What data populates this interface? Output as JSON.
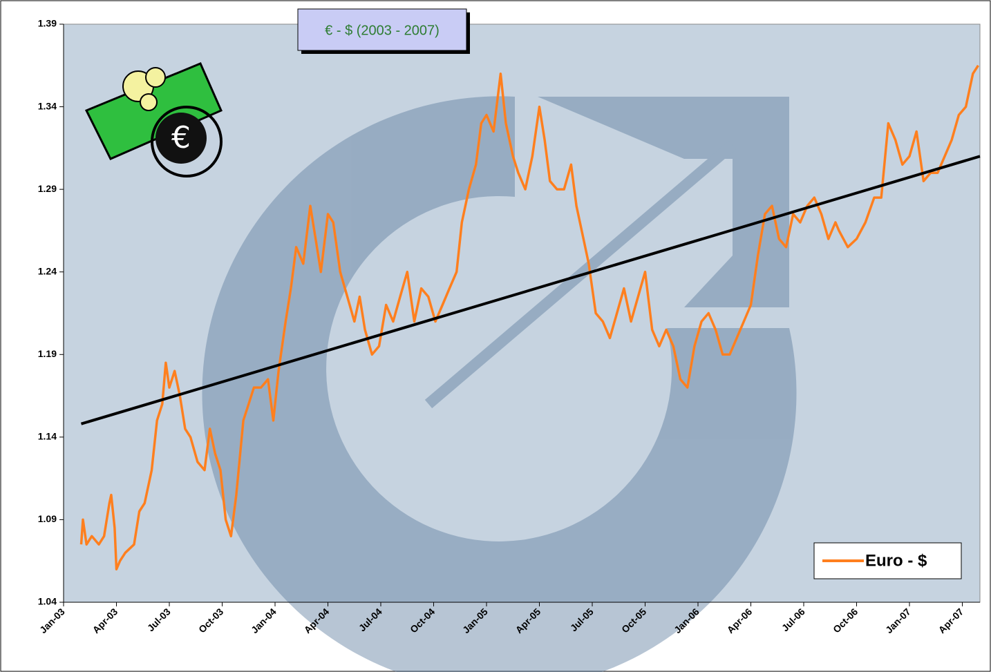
{
  "chart_data": {
    "type": "line",
    "title": "€ - $ (2003 - 2007)",
    "legend": "bottom-right",
    "grid": false,
    "xlim": [
      0,
      52
    ],
    "ylim": [
      1.04,
      1.39
    ],
    "yticks": [
      1.04,
      1.09,
      1.14,
      1.19,
      1.24,
      1.29,
      1.34,
      1.39
    ],
    "xticks": [
      {
        "value": 0,
        "label": "Jan-03"
      },
      {
        "value": 3,
        "label": "Apr-03"
      },
      {
        "value": 6,
        "label": "Jul-03"
      },
      {
        "value": 9,
        "label": "Oct-03"
      },
      {
        "value": 12,
        "label": "Jan-04"
      },
      {
        "value": 15,
        "label": "Apr-04"
      },
      {
        "value": 18,
        "label": "Jul-04"
      },
      {
        "value": 21,
        "label": "Oct-04"
      },
      {
        "value": 24,
        "label": "Jan-05"
      },
      {
        "value": 27,
        "label": "Apr-05"
      },
      {
        "value": 30,
        "label": "Jul-05"
      },
      {
        "value": 33,
        "label": "Oct-05"
      },
      {
        "value": 36,
        "label": "Jan-06"
      },
      {
        "value": 39,
        "label": "Apr-06"
      },
      {
        "value": 42,
        "label": "Jul-06"
      },
      {
        "value": 45,
        "label": "Oct-06"
      },
      {
        "value": 48,
        "label": "Jan-07"
      },
      {
        "value": 51,
        "label": "Apr-07"
      }
    ],
    "series": [
      {
        "name": "Euro - $",
        "color": "#ff7f1e",
        "x": [
          1.0,
          1.1,
          1.3,
          1.6,
          2.0,
          2.3,
          2.6,
          2.7,
          2.9,
          3.0,
          3.2,
          3.5,
          4.0,
          4.3,
          4.6,
          5.0,
          5.3,
          5.6,
          5.8,
          6.0,
          6.3,
          6.6,
          6.9,
          7.2,
          7.6,
          8.0,
          8.3,
          8.6,
          8.9,
          9.2,
          9.5,
          9.8,
          10.2,
          10.5,
          10.8,
          11.2,
          11.6,
          11.9,
          12.2,
          12.6,
          12.9,
          13.2,
          13.6,
          14.0,
          14.3,
          14.6,
          15.0,
          15.3,
          15.7,
          16.1,
          16.5,
          16.8,
          17.1,
          17.5,
          17.9,
          18.3,
          18.7,
          19.1,
          19.5,
          19.9,
          20.3,
          20.7,
          21.1,
          21.5,
          21.9,
          22.3,
          22.6,
          23.0,
          23.4,
          23.7,
          24.0,
          24.4,
          24.8,
          25.1,
          25.5,
          25.8,
          26.2,
          26.6,
          27.0,
          27.3,
          27.6,
          28.0,
          28.4,
          28.8,
          29.1,
          29.5,
          29.8,
          30.2,
          30.6,
          31.0,
          31.4,
          31.8,
          32.2,
          32.6,
          33.0,
          33.4,
          33.8,
          34.2,
          34.6,
          35.0,
          35.4,
          35.8,
          36.2,
          36.6,
          37.0,
          37.4,
          37.8,
          38.2,
          38.6,
          39.0,
          39.4,
          39.8,
          40.2,
          40.6,
          41.0,
          41.4,
          41.8,
          42.2,
          42.6,
          43.0,
          43.4,
          43.8,
          44.0,
          44.5,
          45.0,
          45.5,
          46.0,
          46.4,
          46.8,
          47.2,
          47.6,
          48.0,
          48.4,
          48.8,
          49.2,
          49.6,
          50.0,
          50.4,
          50.8,
          51.2,
          51.6,
          51.9
        ],
        "values": [
          1.075,
          1.09,
          1.075,
          1.08,
          1.075,
          1.08,
          1.1,
          1.105,
          1.085,
          1.06,
          1.065,
          1.07,
          1.075,
          1.095,
          1.1,
          1.12,
          1.15,
          1.16,
          1.185,
          1.17,
          1.18,
          1.165,
          1.145,
          1.14,
          1.125,
          1.12,
          1.145,
          1.13,
          1.12,
          1.09,
          1.08,
          1.105,
          1.15,
          1.16,
          1.17,
          1.17,
          1.175,
          1.15,
          1.18,
          1.21,
          1.23,
          1.255,
          1.245,
          1.28,
          1.26,
          1.24,
          1.275,
          1.27,
          1.24,
          1.225,
          1.21,
          1.225,
          1.205,
          1.19,
          1.195,
          1.22,
          1.21,
          1.225,
          1.24,
          1.21,
          1.23,
          1.225,
          1.21,
          1.22,
          1.23,
          1.24,
          1.27,
          1.29,
          1.305,
          1.33,
          1.335,
          1.325,
          1.36,
          1.33,
          1.31,
          1.3,
          1.29,
          1.31,
          1.34,
          1.32,
          1.295,
          1.29,
          1.29,
          1.305,
          1.28,
          1.26,
          1.245,
          1.215,
          1.21,
          1.2,
          1.215,
          1.23,
          1.21,
          1.225,
          1.24,
          1.205,
          1.195,
          1.205,
          1.195,
          1.175,
          1.17,
          1.195,
          1.21,
          1.215,
          1.205,
          1.19,
          1.19,
          1.2,
          1.21,
          1.22,
          1.25,
          1.275,
          1.28,
          1.26,
          1.255,
          1.275,
          1.27,
          1.28,
          1.285,
          1.275,
          1.26,
          1.27,
          1.265,
          1.255,
          1.26,
          1.27,
          1.285,
          1.285,
          1.33,
          1.32,
          1.305,
          1.31,
          1.325,
          1.295,
          1.3,
          1.3,
          1.31,
          1.32,
          1.335,
          1.34,
          1.36,
          1.365
        ]
      }
    ],
    "trendline": {
      "color": "#000000",
      "x": [
        1.0,
        52
      ],
      "values": [
        1.148,
        1.31
      ]
    }
  }
}
